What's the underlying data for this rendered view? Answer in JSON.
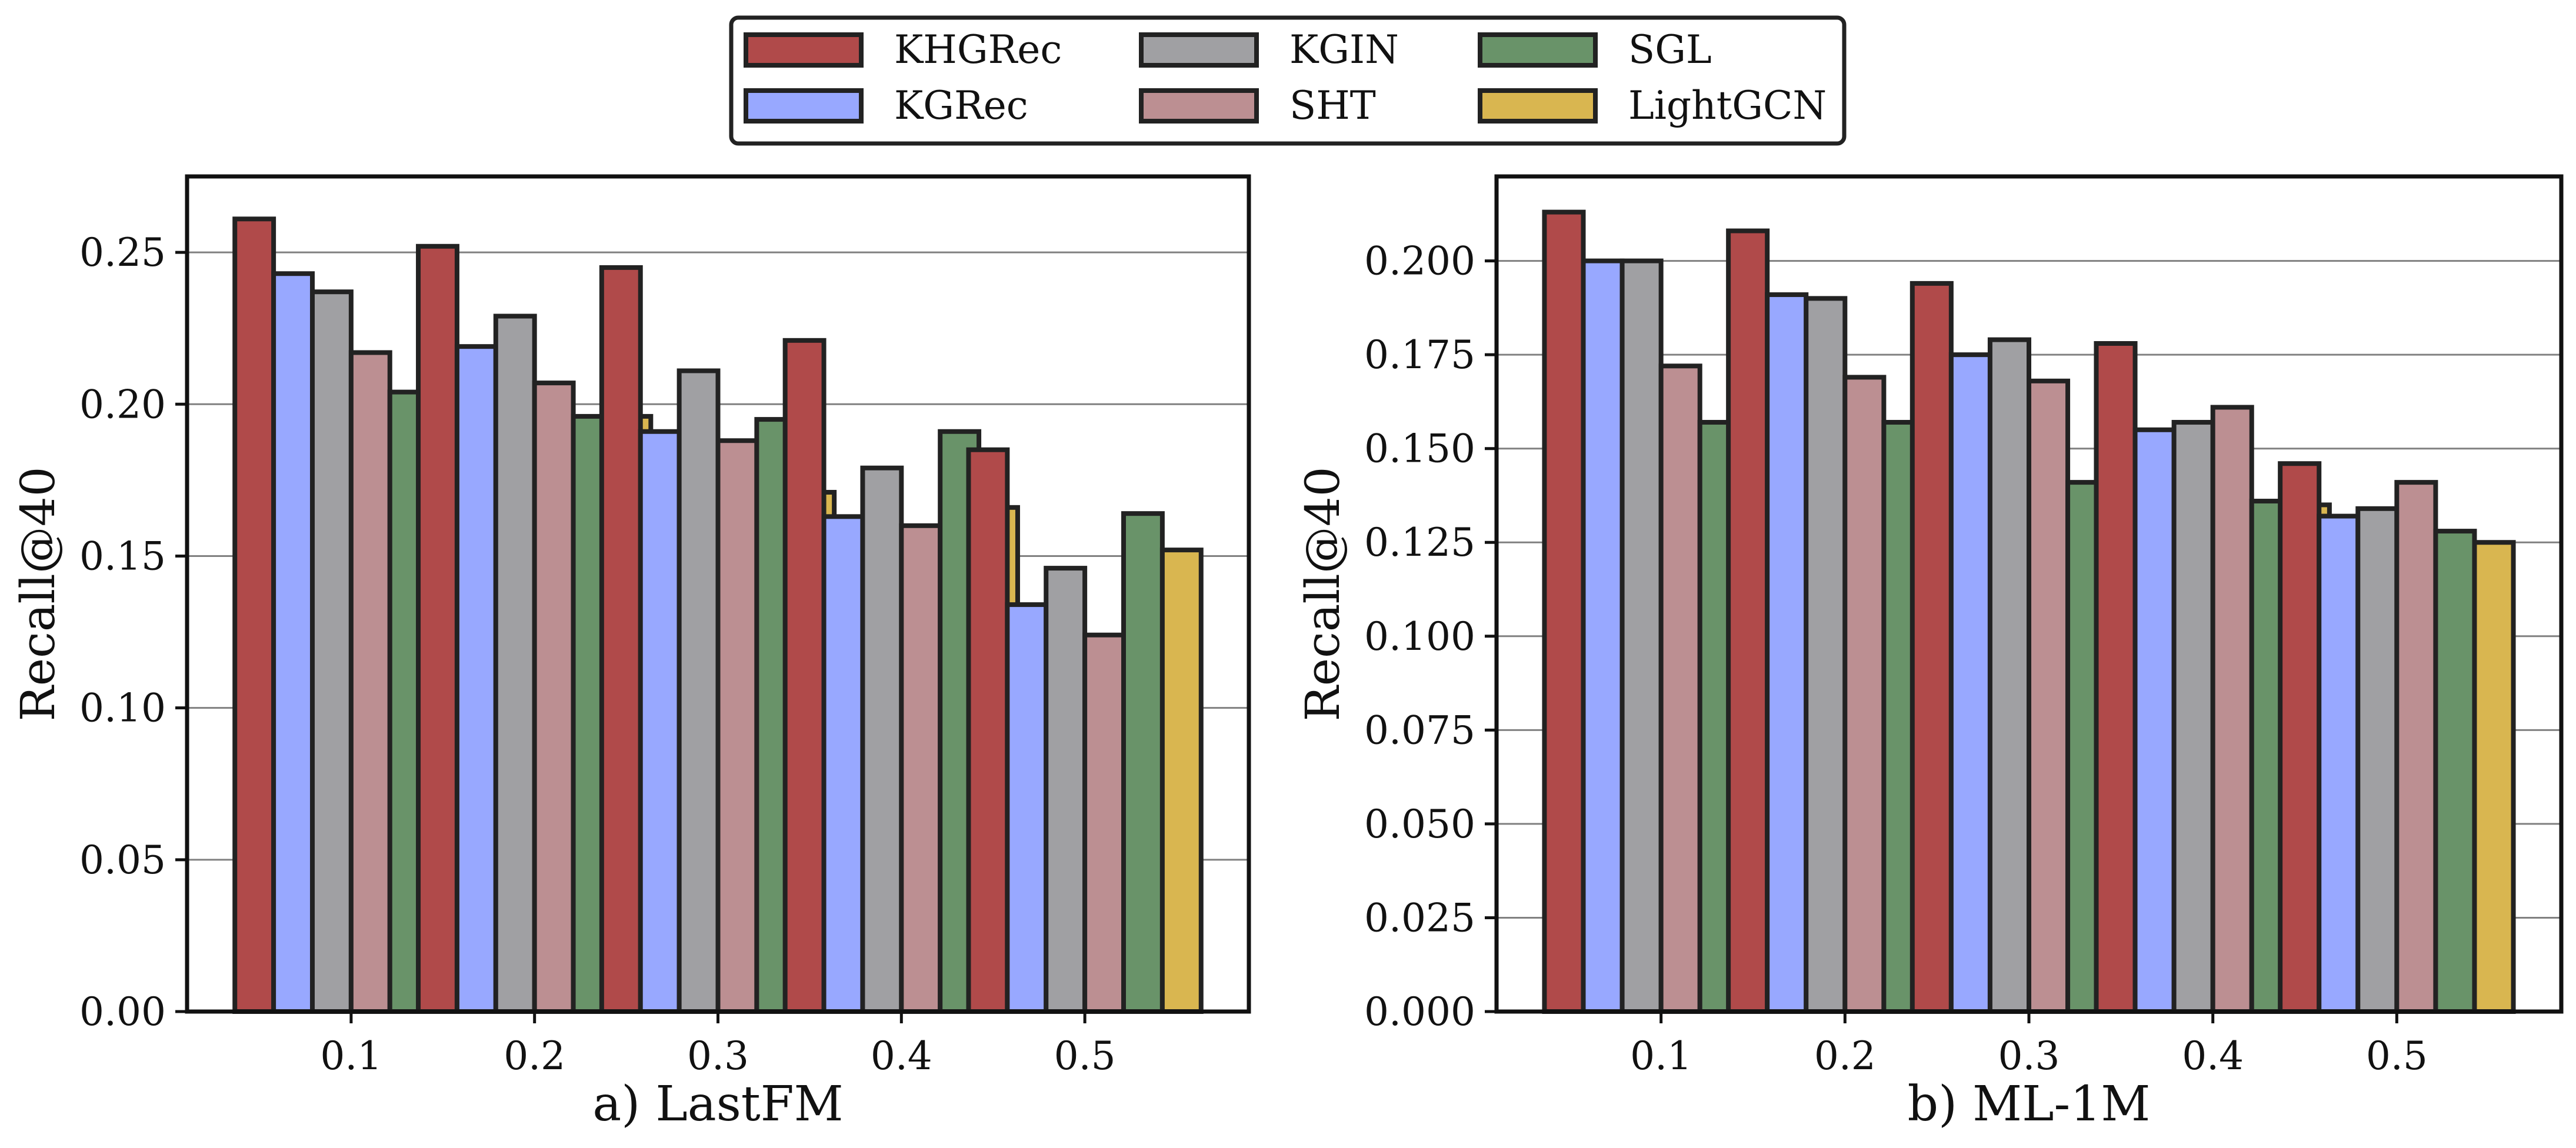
{
  "legend": {
    "placement": "top-center",
    "entries": [
      {
        "name": "KHGRec",
        "color": "#b04a4a"
      },
      {
        "name": "KGRec",
        "color": "#98a8ff"
      },
      {
        "name": "KGIN",
        "color": "#a0a0a3"
      },
      {
        "name": "SHT",
        "color": "#bc8f92"
      },
      {
        "name": "SGL",
        "color": "#699369"
      },
      {
        "name": "LightGCN",
        "color": "#d9b650"
      }
    ]
  },
  "chart_data": [
    {
      "type": "bar",
      "title": "a) LastFM",
      "xlabel": "",
      "ylabel": "Recall@40",
      "categories": [
        "0.1",
        "0.2",
        "0.3",
        "0.4",
        "0.5"
      ],
      "ylim": [
        0,
        0.275
      ],
      "yticks": [
        0.0,
        0.05,
        0.1,
        0.15,
        0.2,
        0.25
      ],
      "ytick_labels": [
        "0.00",
        "0.05",
        "0.10",
        "0.15",
        "0.20",
        "0.25"
      ],
      "grid": "horizontal",
      "series": [
        {
          "name": "KHGRec",
          "values": [
            0.261,
            0.252,
            0.245,
            0.221,
            0.185
          ]
        },
        {
          "name": "KGRec",
          "values": [
            0.243,
            0.219,
            0.191,
            0.163,
            0.134
          ]
        },
        {
          "name": "KGIN",
          "values": [
            0.237,
            0.229,
            0.211,
            0.179,
            0.146
          ]
        },
        {
          "name": "SHT",
          "values": [
            0.217,
            0.207,
            0.188,
            0.16,
            0.124
          ]
        },
        {
          "name": "SGL",
          "values": [
            0.204,
            0.196,
            0.195,
            0.191,
            0.164
          ]
        },
        {
          "name": "LightGCN",
          "values": [
            0.199,
            0.196,
            0.171,
            0.166,
            0.152
          ]
        }
      ]
    },
    {
      "type": "bar",
      "title": "b) ML-1M",
      "xlabel": "",
      "ylabel": "Recall@40",
      "categories": [
        "0.1",
        "0.2",
        "0.3",
        "0.4",
        "0.5"
      ],
      "ylim": [
        0,
        0.2225
      ],
      "yticks": [
        0.0,
        0.025,
        0.05,
        0.075,
        0.1,
        0.125,
        0.15,
        0.175,
        0.2
      ],
      "ytick_labels": [
        "0.000",
        "0.025",
        "0.050",
        "0.075",
        "0.100",
        "0.125",
        "0.150",
        "0.175",
        "0.200"
      ],
      "grid": "horizontal",
      "series": [
        {
          "name": "KHGRec",
          "values": [
            0.213,
            0.208,
            0.194,
            0.178,
            0.146
          ]
        },
        {
          "name": "KGRec",
          "values": [
            0.2,
            0.191,
            0.175,
            0.155,
            0.132
          ]
        },
        {
          "name": "KGIN",
          "values": [
            0.2,
            0.19,
            0.179,
            0.157,
            0.134
          ]
        },
        {
          "name": "SHT",
          "values": [
            0.172,
            0.169,
            0.168,
            0.161,
            0.141
          ]
        },
        {
          "name": "SGL",
          "values": [
            0.157,
            0.157,
            0.141,
            0.136,
            0.128
          ]
        },
        {
          "name": "LightGCN",
          "values": [
            0.155,
            0.154,
            0.143,
            0.135,
            0.125
          ]
        }
      ]
    }
  ]
}
